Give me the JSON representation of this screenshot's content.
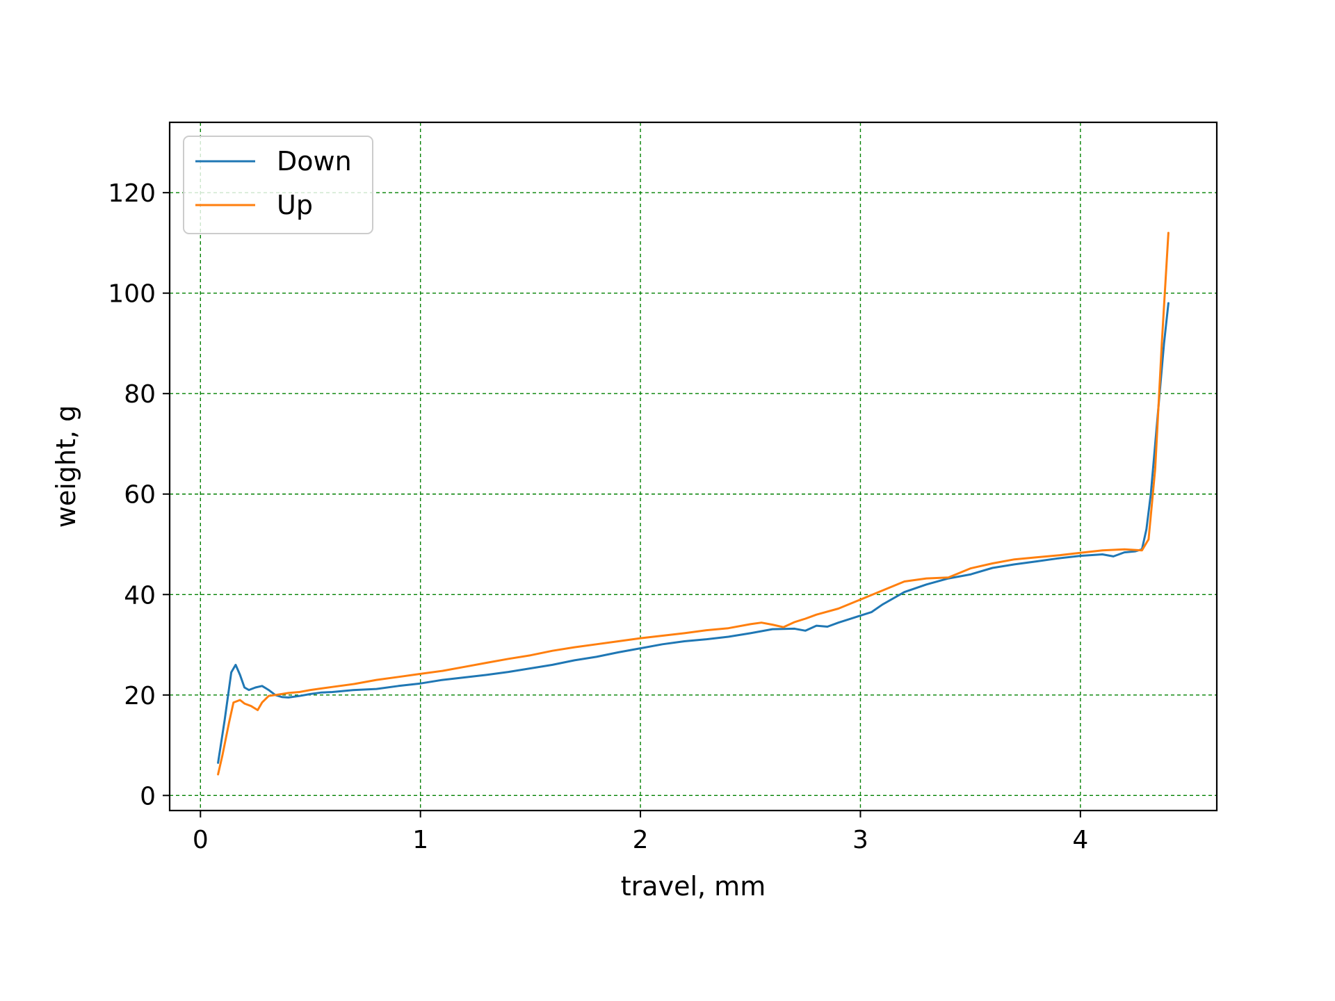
{
  "chart_data": {
    "type": "line",
    "title": "",
    "xlabel": "travel, mm",
    "ylabel": "weight, g",
    "xlim": [
      -0.14,
      4.62
    ],
    "ylim": [
      -3,
      134
    ],
    "x_ticks": [
      0,
      1,
      2,
      3,
      4
    ],
    "y_ticks": [
      0,
      20,
      40,
      60,
      80,
      100,
      120
    ],
    "grid": true,
    "grid_color": "#008000",
    "grid_style": "dashed",
    "legend_position": "top-left",
    "series": [
      {
        "name": "Down",
        "color": "#1f77b4",
        "x": [
          0.08,
          0.11,
          0.14,
          0.16,
          0.18,
          0.2,
          0.22,
          0.25,
          0.28,
          0.31,
          0.34,
          0.37,
          0.4,
          0.45,
          0.5,
          0.55,
          0.6,
          0.7,
          0.8,
          0.9,
          1.0,
          1.1,
          1.2,
          1.3,
          1.4,
          1.5,
          1.6,
          1.7,
          1.8,
          1.9,
          2.0,
          2.1,
          2.2,
          2.3,
          2.4,
          2.5,
          2.6,
          2.7,
          2.75,
          2.8,
          2.85,
          2.9,
          3.0,
          3.05,
          3.1,
          3.2,
          3.3,
          3.4,
          3.5,
          3.6,
          3.7,
          3.8,
          3.9,
          4.0,
          4.1,
          4.15,
          4.2,
          4.25,
          4.28,
          4.3,
          4.32,
          4.35,
          4.38,
          4.4
        ],
        "y": [
          6.5,
          15,
          24.5,
          26,
          24,
          21.5,
          21,
          21.5,
          21.8,
          21,
          20,
          19.6,
          19.5,
          19.8,
          20.2,
          20.5,
          20.6,
          21,
          21.2,
          21.8,
          22.3,
          23,
          23.5,
          24,
          24.6,
          25.3,
          26,
          26.9,
          27.6,
          28.5,
          29.3,
          30.1,
          30.7,
          31.1,
          31.6,
          32.3,
          33.1,
          33.2,
          32.8,
          33.8,
          33.6,
          34.4,
          35.8,
          36.5,
          38,
          40.5,
          42,
          43.2,
          44,
          45.3,
          46,
          46.6,
          47.2,
          47.7,
          48,
          47.6,
          48.4,
          48.6,
          49,
          53,
          60,
          75,
          90,
          98
        ]
      },
      {
        "name": "Up",
        "color": "#ff7f0e",
        "x": [
          0.08,
          0.1,
          0.13,
          0.15,
          0.18,
          0.2,
          0.23,
          0.26,
          0.28,
          0.31,
          0.34,
          0.37,
          0.4,
          0.45,
          0.5,
          0.55,
          0.6,
          0.7,
          0.8,
          0.9,
          1.0,
          1.1,
          1.2,
          1.3,
          1.4,
          1.5,
          1.6,
          1.7,
          1.8,
          1.9,
          2.0,
          2.1,
          2.2,
          2.3,
          2.4,
          2.5,
          2.55,
          2.6,
          2.65,
          2.7,
          2.75,
          2.8,
          2.9,
          3.0,
          3.1,
          3.2,
          3.3,
          3.4,
          3.5,
          3.6,
          3.7,
          3.8,
          3.9,
          4.0,
          4.1,
          4.2,
          4.28,
          4.31,
          4.34,
          4.37,
          4.4
        ],
        "y": [
          4.2,
          8,
          14.5,
          18.5,
          19,
          18.3,
          17.8,
          17,
          18.5,
          19.8,
          20,
          20.2,
          20.4,
          20.6,
          21,
          21.3,
          21.6,
          22.2,
          23,
          23.6,
          24.2,
          24.8,
          25.6,
          26.4,
          27.2,
          27.9,
          28.8,
          29.5,
          30.1,
          30.7,
          31.3,
          31.8,
          32.3,
          32.9,
          33.3,
          34.1,
          34.4,
          34,
          33.5,
          34.5,
          35.2,
          36,
          37.2,
          39,
          40.8,
          42.6,
          43.2,
          43.4,
          45.2,
          46.2,
          47,
          47.4,
          47.8,
          48.3,
          48.8,
          49,
          48.8,
          51,
          65,
          90,
          112
        ]
      }
    ]
  }
}
